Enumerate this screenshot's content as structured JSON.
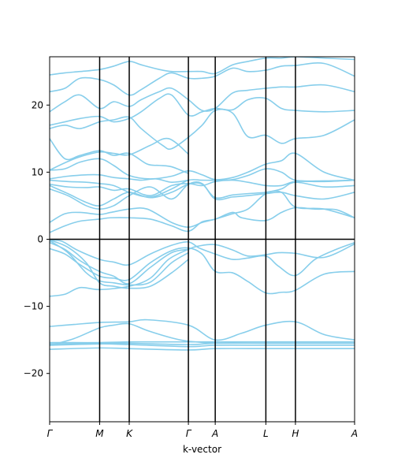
{
  "chart_data": {
    "type": "line",
    "title": "",
    "xlabel": "k-vector",
    "ylabel": "",
    "ylim": [
      -27.2,
      27.2
    ],
    "yticks": [
      -20,
      -10,
      0,
      10,
      20
    ],
    "grid": false,
    "legend": "none",
    "line_color": "#87ceeb",
    "kpoints": [
      {
        "label": "Γ",
        "x": 0.0
      },
      {
        "label": "M",
        "x": 0.164
      },
      {
        "label": "K",
        "x": 0.261
      },
      {
        "label": "Γ",
        "x": 0.455
      },
      {
        "label": "A",
        "x": 0.543
      },
      {
        "label": "L",
        "x": 0.709
      },
      {
        "label": "H",
        "x": 0.806
      },
      {
        "label": "A",
        "x": 1.0
      }
    ],
    "bands": [
      {
        "x": [
          0,
          0.164,
          0.261,
          0.455,
          0.543,
          0.709,
          0.806,
          1.0
        ],
        "y": [
          -16.4,
          -16.2,
          -16.3,
          -16.5,
          -16.3,
          -16.3,
          -16.3,
          -16.3
        ]
      },
      {
        "x": [
          0,
          0.164,
          0.261,
          0.455,
          0.543,
          0.709,
          0.806,
          1.0
        ],
        "y": [
          -15.8,
          -15.6,
          -15.7,
          -16.0,
          -15.8,
          -15.8,
          -15.8,
          -15.8
        ]
      },
      {
        "x": [
          0,
          0.164,
          0.261,
          0.455,
          0.543,
          0.709,
          0.806,
          1.0
        ],
        "y": [
          -15.6,
          -15.5,
          -15.5,
          -15.7,
          -15.5,
          -15.5,
          -15.5,
          -15.5
        ]
      },
      {
        "x": [
          0,
          0.05,
          0.164,
          0.261,
          0.33,
          0.455,
          0.543,
          0.709,
          0.806,
          0.9,
          1.0
        ],
        "y": [
          -15.4,
          -15.4,
          -15.4,
          -15.3,
          -15.3,
          -15.3,
          -15.3,
          -15.3,
          -15.3,
          -15.3,
          -15.3
        ]
      },
      {
        "x": [
          0,
          0.08,
          0.164,
          0.261,
          0.32,
          0.455,
          0.543,
          0.63,
          0.709,
          0.806,
          0.9,
          1.0
        ],
        "y": [
          -13.0,
          -12.7,
          -12.4,
          -12.3,
          -12.0,
          -12.8,
          -15.0,
          -14.0,
          -12.8,
          -12.3,
          -14.2,
          -15.0
        ]
      },
      {
        "x": [
          0,
          0.08,
          0.164,
          0.21,
          0.261,
          0.32,
          0.4,
          0.455,
          0.543
        ],
        "y": [
          -15.8,
          -14.8,
          -13.2,
          -12.8,
          -12.6,
          -13.6,
          -14.7,
          -15.2,
          -15.5
        ]
      },
      {
        "x": [
          0,
          0.05,
          0.1,
          0.164,
          0.261,
          0.33,
          0.39,
          0.455,
          0.49,
          0.543,
          0.6,
          0.65,
          0.709,
          0.75,
          0.806,
          0.9,
          1.0
        ],
        "y": [
          -8.5,
          -8.2,
          -7.2,
          -7.5,
          -7.0,
          -5.8,
          -3.0,
          -1.5,
          -1.0,
          -0.8,
          -1.6,
          -2.5,
          -2.3,
          -2.0,
          -2.1,
          -2.7,
          -0.7
        ]
      },
      {
        "x": [
          0,
          0.04,
          0.09,
          0.164,
          0.21,
          0.261,
          0.33,
          0.4,
          0.455,
          0.49,
          0.543,
          0.6,
          0.65,
          0.709,
          0.75,
          0.806,
          0.87,
          0.94,
          1.0
        ],
        "y": [
          -0.1,
          -0.3,
          -1.6,
          -3.0,
          -3.4,
          -3.8,
          -2.2,
          -0.9,
          -0.4,
          -1.3,
          -2.2,
          -3.0,
          -2.8,
          -2.5,
          -4.0,
          -5.4,
          -3.0,
          -1.5,
          -0.5
        ]
      },
      {
        "x": [
          0,
          0.05,
          0.1,
          0.164,
          0.21,
          0.261,
          0.33,
          0.4,
          0.455,
          0.5,
          0.543,
          0.6,
          0.65,
          0.709,
          0.76,
          0.806,
          0.9,
          1.0
        ],
        "y": [
          -1.4,
          -2.2,
          -3.8,
          -5.5,
          -5.8,
          -6.0,
          -3.5,
          -1.7,
          -1.3,
          -2.2,
          -4.8,
          -5.0,
          -6.3,
          -8.0,
          -7.9,
          -7.6,
          -5.2,
          -4.8
        ]
      },
      {
        "x": [
          0,
          0.05,
          0.1,
          0.164,
          0.21,
          0.261,
          0.33,
          0.4,
          0.455
        ],
        "y": [
          -0.5,
          -1.5,
          -3.2,
          -4.8,
          -5.5,
          -6.6,
          -4.2,
          -2.0,
          -1.5
        ]
      },
      {
        "x": [
          0,
          0.06,
          0.12,
          0.164,
          0.21,
          0.261,
          0.33,
          0.4,
          0.455
        ],
        "y": [
          -0.2,
          -2.0,
          -5.0,
          -6.2,
          -6.5,
          -6.8,
          -6.4,
          -3.5,
          -2.0
        ]
      },
      {
        "x": [
          0,
          0.06,
          0.12,
          0.164,
          0.21,
          0.261,
          0.33,
          0.4,
          0.455
        ],
        "y": [
          -0.1,
          -1.2,
          -3.5,
          -6.5,
          -7.0,
          -7.3,
          -7.0,
          -5.0,
          -3.0
        ]
      },
      {
        "x": [
          0,
          0.05,
          0.1,
          0.164,
          0.2,
          0.261,
          0.33,
          0.4,
          0.455,
          0.5,
          0.543,
          0.6,
          0.63,
          0.709,
          0.76,
          0.806,
          0.87,
          0.94,
          1.0
        ],
        "y": [
          1.0,
          2.0,
          2.7,
          3.0,
          3.2,
          3.2,
          3.0,
          2.0,
          1.2,
          2.6,
          3.0,
          4.0,
          3.2,
          2.8,
          4.0,
          4.7,
          4.5,
          4.4,
          3.2
        ]
      },
      {
        "x": [
          0,
          0.05,
          0.1,
          0.164,
          0.2,
          0.261,
          0.32,
          0.4,
          0.455,
          0.5,
          0.543,
          0.6,
          0.65,
          0.709,
          0.76,
          0.806,
          0.9,
          1.0
        ],
        "y": [
          2.5,
          3.8,
          4.0,
          3.7,
          4.0,
          4.5,
          4.5,
          2.5,
          1.8,
          2.5,
          3.0,
          3.8,
          4.5,
          6.8,
          7.0,
          4.8,
          4.5,
          3.2
        ]
      },
      {
        "x": [
          0,
          0.06,
          0.12,
          0.164,
          0.21,
          0.261,
          0.33,
          0.4,
          0.455,
          0.5,
          0.543,
          0.6,
          0.65,
          0.709,
          0.76,
          0.806,
          0.9,
          1.0
        ],
        "y": [
          7.5,
          6.5,
          5.0,
          4.5,
          5.0,
          6.5,
          7.8,
          6.0,
          8.2,
          8.3,
          6.0,
          6.3,
          6.5,
          6.8,
          7.0,
          6.5,
          6.0,
          7.0
        ]
      },
      {
        "x": [
          0,
          0.06,
          0.12,
          0.164,
          0.21,
          0.261,
          0.33,
          0.4,
          0.455,
          0.5,
          0.543,
          0.6,
          0.65,
          0.709,
          0.76,
          0.806,
          0.9,
          1.0
        ],
        "y": [
          8.0,
          6.8,
          5.5,
          5.0,
          6.0,
          7.0,
          6.2,
          7.0,
          8.2,
          8.2,
          6.2,
          6.6,
          6.8,
          7.0,
          7.5,
          8.5,
          7.8,
          8.0
        ]
      },
      {
        "x": [
          0,
          0.06,
          0.12,
          0.164,
          0.21,
          0.261,
          0.33,
          0.4,
          0.455,
          0.5,
          0.543,
          0.6,
          0.65,
          0.709,
          0.76,
          0.806,
          0.9,
          1.0
        ],
        "y": [
          8.2,
          7.8,
          7.7,
          7.8,
          7.3,
          7.5,
          6.5,
          8.0,
          8.3,
          8.0,
          8.6,
          8.8,
          8.5,
          8.0,
          8.0,
          8.6,
          8.6,
          8.8
        ]
      },
      {
        "x": [
          0,
          0.06,
          0.12,
          0.164,
          0.21,
          0.261,
          0.33,
          0.4,
          0.455,
          0.5,
          0.543,
          0.6,
          0.65,
          0.709,
          0.76,
          0.806,
          0.9,
          1.0
        ],
        "y": [
          8.8,
          8.6,
          8.5,
          8.3,
          8.0,
          7.0,
          6.3,
          7.5,
          8.8,
          8.8,
          8.8,
          8.9,
          9.5,
          10.5,
          10.0,
          8.8,
          8.7,
          8.8
        ]
      },
      {
        "x": [
          0,
          0.05,
          0.1,
          0.164,
          0.21,
          0.261,
          0.33,
          0.4,
          0.455,
          0.5,
          0.543,
          0.6,
          0.65,
          0.709,
          0.76,
          0.806,
          0.9,
          1.0
        ],
        "y": [
          10.3,
          10.5,
          11.5,
          12.0,
          11.0,
          9.5,
          9.0,
          9.4,
          10.2,
          9.6,
          8.9,
          9.2,
          10.0,
          11.2,
          11.7,
          12.8,
          10.0,
          8.8
        ]
      },
      {
        "x": [
          0,
          0.06,
          0.12,
          0.164,
          0.21,
          0.261,
          0.3,
          0.35,
          0.4,
          0.455
        ],
        "y": [
          9.0,
          9.4,
          9.6,
          9.6,
          9.2,
          9.0,
          8.8,
          9.0,
          8.5,
          8.8
        ]
      },
      {
        "x": [
          0,
          0.05,
          0.1,
          0.164,
          0.21,
          0.261,
          0.32,
          0.36,
          0.4,
          0.455
        ],
        "y": [
          15.0,
          12.0,
          12.5,
          13.2,
          12.5,
          12.8,
          11.2,
          11.0,
          10.8,
          9.8
        ]
      },
      {
        "x": [
          0,
          0.05,
          0.1,
          0.164,
          0.21,
          0.261,
          0.33,
          0.39,
          0.455
        ],
        "y": [
          10.3,
          11.4,
          12.3,
          13.0,
          12.8,
          12.6,
          14.0,
          15.0,
          12.7
        ]
      },
      {
        "x": [
          0,
          0.05,
          0.1,
          0.164,
          0.21,
          0.261,
          0.3,
          0.37,
          0.4,
          0.455,
          0.5,
          0.543,
          0.6,
          0.65,
          0.709,
          0.76,
          0.806,
          0.9,
          1.0
        ],
        "y": [
          16.5,
          17.0,
          16.5,
          17.5,
          17.8,
          18.2,
          16.5,
          14.0,
          13.5,
          15.2,
          17.0,
          19.2,
          18.8,
          15.3,
          15.5,
          14.3,
          15.0,
          15.5,
          17.8
        ]
      },
      {
        "x": [
          0,
          0.05,
          0.1,
          0.164,
          0.21,
          0.261,
          0.3,
          0.36,
          0.4,
          0.455,
          0.5,
          0.543,
          0.6,
          0.65,
          0.709,
          0.76,
          0.806,
          0.9,
          1.0
        ],
        "y": [
          17.0,
          17.5,
          18.0,
          18.3,
          17.5,
          18.0,
          19.0,
          21.0,
          21.5,
          18.5,
          19.0,
          19.5,
          19.3,
          20.8,
          21.0,
          19.5,
          19.2,
          19.0,
          19.2
        ]
      },
      {
        "x": [
          0,
          0.05,
          0.1,
          0.164,
          0.21,
          0.261,
          0.3,
          0.36,
          0.4,
          0.455,
          0.5,
          0.543,
          0.6,
          0.65,
          0.709,
          0.76,
          0.806,
          0.9,
          1.0
        ],
        "y": [
          19.0,
          20.5,
          21.5,
          19.5,
          20.5,
          19.8,
          20.8,
          22.0,
          22.5,
          20.8,
          19.2,
          19.5,
          21.8,
          22.2,
          22.5,
          22.7,
          22.7,
          23.0,
          22.0
        ]
      },
      {
        "x": [
          0,
          0.05,
          0.1,
          0.164,
          0.21,
          0.261,
          0.3,
          0.36,
          0.4,
          0.455,
          0.5,
          0.543,
          0.6,
          0.65,
          0.709,
          0.76,
          0.806,
          0.9,
          1.0
        ],
        "y": [
          22.0,
          22.5,
          24.0,
          23.8,
          23.0,
          21.5,
          22.3,
          24.0,
          24.8,
          24.0,
          24.0,
          24.3,
          25.5,
          25.0,
          25.2,
          25.8,
          25.9,
          26.2,
          24.3
        ]
      },
      {
        "x": [
          0,
          0.05,
          0.1,
          0.164,
          0.21,
          0.261,
          0.3,
          0.36,
          0.4,
          0.455,
          0.5,
          0.543,
          0.6,
          0.65,
          0.709,
          0.76,
          0.806,
          0.9,
          1.0
        ],
        "y": [
          24.5,
          24.8,
          25.0,
          25.3,
          25.8,
          26.5,
          26.0,
          25.3,
          25.0,
          25.0,
          25.0,
          24.7,
          26.0,
          26.5,
          27.0,
          27.0,
          27.2,
          27.0,
          26.8
        ]
      }
    ]
  }
}
